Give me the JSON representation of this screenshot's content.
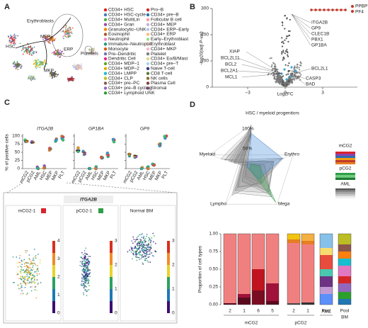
{
  "panel_a": {
    "label": "A",
    "clusters": [
      "Erythroblasts",
      "MEP",
      "HSC",
      "ERP",
      "Platelets",
      "MKP"
    ],
    "legend_col1": [
      "CD34+ HSC",
      "CD34+ HSC-cycle",
      "CD34+ MultiLin",
      "CD34+ Gran",
      "Granulocytic–UNK",
      "Eosinophil",
      "Neutrophil",
      "Immature–Neutrophil",
      "Monocyte",
      "Pre–Dendritic",
      "Dendritic Cell",
      "CD34+ MDP–1",
      "CD34+ MDP–2",
      "CD34+ LMPP",
      "CD34+ CLP",
      "CD34+ pre–PC",
      "CD34+ pre–B cycling",
      "CD34+ Lymphoid UNK"
    ],
    "legend_col2": [
      "Pro–B",
      "CD34+ pre–B",
      "Follicular B cell",
      "CD34+ MEP",
      "CD34+ ERP–Early",
      "CD34+ ERP",
      "Early–Erythroblast",
      "Erythroblast",
      "CD34+ MKP",
      "Platelet",
      "CD34+ Eo/B/Mast",
      "CD34+ pre–T",
      "Naive T-cell",
      "CD8 T-cell",
      "NK cells",
      "Plasma Cell",
      "Stromal"
    ]
  },
  "panel_b": {
    "label": "B",
    "y_axis": "-log10(adj P-val)",
    "x_axis": "Log2FC",
    "yticks": [
      "0",
      "100",
      "200",
      "300"
    ],
    "xticks": [
      "−3",
      "0",
      "3"
    ],
    "genes_red": [
      "PPBP",
      "PF4"
    ],
    "genes_right": [
      "ITGA2B",
      "GP9",
      "CLEC1B",
      "PBX1",
      "GP1BA",
      "BCL2L1",
      "CASP3",
      "BAD"
    ],
    "genes_left": [
      "XIAP",
      "BCL2L11",
      "BCL2",
      "BCL2A1",
      "MCL1"
    ]
  },
  "panel_c": {
    "label": "C",
    "y_axis": "% of positive cells",
    "yticks": [
      "0",
      "25",
      "50",
      "75",
      "100"
    ],
    "genes": [
      "ITGA2B",
      "GP1BA",
      "GP9"
    ],
    "categories": [
      "mCG2",
      "pCG2",
      "AML",
      "HSC",
      "MEP",
      "MKP",
      "PLT"
    ],
    "inset_title": "ITGA2B",
    "inset_panels": [
      {
        "title": "mCG2-1",
        "ticks": [
          "0",
          "1",
          "2",
          "3",
          "4"
        ]
      },
      {
        "title": "pCG2-1",
        "ticks": [
          "0",
          "1",
          "2",
          "3"
        ]
      },
      {
        "title": "Normal BM",
        "ticks": [
          "0",
          "1",
          "2",
          "3"
        ]
      }
    ]
  },
  "panel_d": {
    "label": "D",
    "radar_title": "HSC / myeloid progenitors",
    "radar_axes": [
      "Myeloid",
      "Erythro",
      "Mega",
      "Lympho"
    ],
    "radar_ticks": [
      "100%",
      "50%"
    ],
    "legend": [
      "mCG2",
      "pCG2",
      "AML"
    ],
    "y_axis": "Proportion of cell types",
    "yticks": [
      "0.00",
      "0.25",
      "0.50",
      "0.75",
      "1.00"
    ],
    "bars": [
      "2",
      "1",
      "6",
      "5",
      "2",
      "1",
      "Pool",
      "Pool"
    ],
    "groups": [
      "mCG2",
      "pCG2",
      "AML",
      "BM"
    ]
  }
}
